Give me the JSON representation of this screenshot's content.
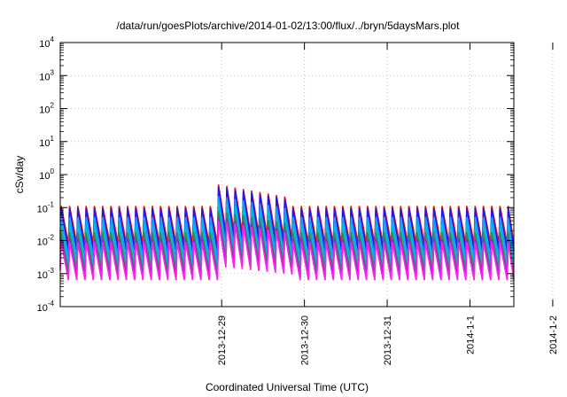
{
  "chart_data": {
    "type": "line",
    "title": "/data/run/goesPlots/archive/2014-01-02/13:00/flux/../bryn/5daysMars.plot",
    "xlabel": "Coordinated Universal Time (UTC)",
    "ylabel": "cSv/day",
    "yscale": "log",
    "ylim_exponent": [
      -4,
      4
    ],
    "y_tick_base": "10",
    "y_tick_exponents": [
      "-4",
      "-3",
      "-2",
      "-1",
      "0",
      "1",
      "2",
      "3",
      "4"
    ],
    "x_tick_labels": [
      "2013-12-29",
      "2013-12-30",
      "2013-12-31",
      "2014-1-1",
      "2014-1-2"
    ],
    "x_range_days": [
      27.05,
      32.53
    ],
    "x_tick_days": [
      29,
      30,
      31,
      32,
      33
    ],
    "grid": true,
    "legend": "none",
    "oscillation_period_days": 0.1,
    "segment": {
      "start_days": 27.05,
      "end_days": 32.53
    },
    "series": [
      {
        "color": "#ee1111",
        "peak_log10": -0.95,
        "trough_log10": -2.1
      },
      {
        "color": "#1a1aee",
        "peak_log10": -1.02,
        "trough_log10": -2.3
      },
      {
        "color": "#1199ff",
        "peak_log10": -1.3,
        "trough_log10": -2.55
      },
      {
        "color": "#00bcd4",
        "peak_log10": -1.5,
        "trough_log10": -2.8
      },
      {
        "color": "#2e8b57",
        "peak_log10": -1.75,
        "trough_log10": -2.95
      },
      {
        "color": "#9922cc",
        "peak_log10": -1.95,
        "trough_log10": -3.1
      },
      {
        "color": "#ff22ee",
        "peak_log10": -2.05,
        "trough_log10": -3.2
      }
    ],
    "event": {
      "start_days": 28.95,
      "end_days": 29.8,
      "peak_log10_boost": 0.65
    }
  }
}
